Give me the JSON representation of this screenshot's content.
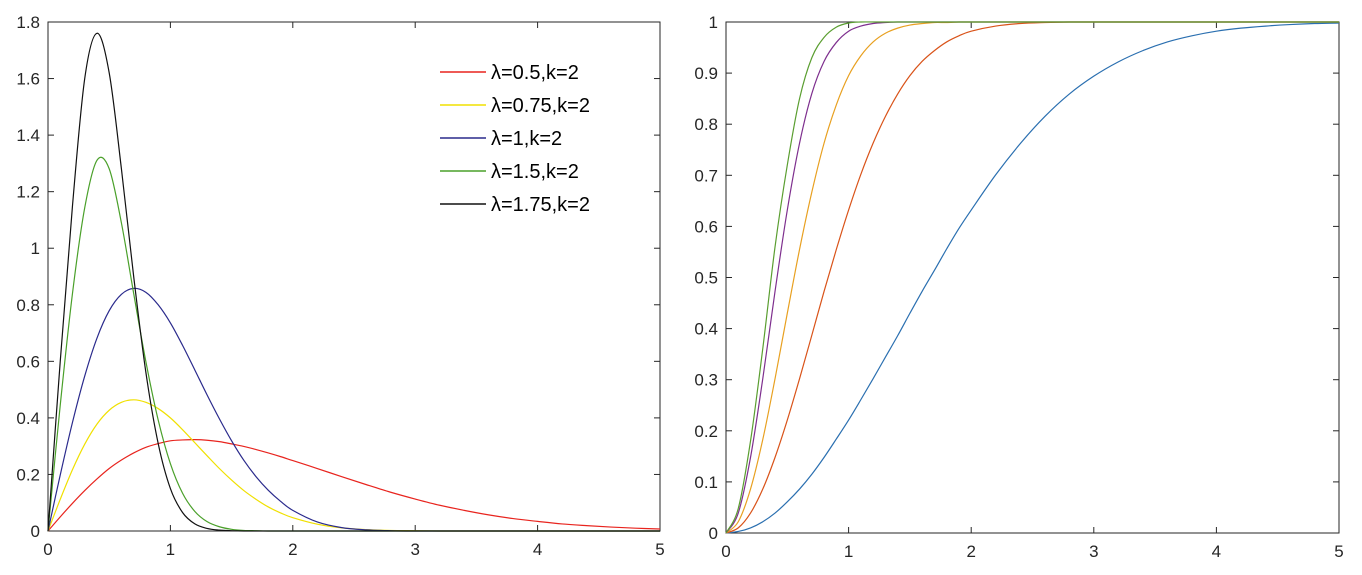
{
  "chart_data": [
    {
      "type": "line",
      "title": "",
      "xlabel": "",
      "ylabel": "",
      "xlim": [
        0,
        5
      ],
      "ylim": [
        0,
        1.8
      ],
      "xticks": [
        "0",
        "1",
        "2",
        "3",
        "4",
        "5"
      ],
      "yticks": [
        "0",
        "0.2",
        "0.4",
        "0.6",
        "0.8",
        "1",
        "1.2",
        "1.4",
        "1.6",
        "1.8"
      ],
      "grid": false,
      "legend": "top-right",
      "x": [
        0,
        0.1,
        0.2,
        0.3,
        0.4,
        0.5,
        0.6,
        0.7,
        0.8,
        0.9,
        1.0,
        1.1,
        1.2,
        1.3,
        1.4,
        1.5,
        1.6,
        1.7,
        1.8,
        1.9,
        2.0,
        2.2,
        2.4,
        2.6,
        2.8,
        3.0,
        3.2,
        3.4,
        3.6,
        3.8,
        4.0,
        4.2,
        4.4,
        4.6,
        4.8,
        5.0
      ],
      "series": [
        {
          "name": "λ=0.5,k=2",
          "color": "#e8241e",
          "values": [
            0,
            0.05,
            0.098,
            0.143,
            0.184,
            0.221,
            0.251,
            0.276,
            0.296,
            0.309,
            0.319,
            0.322,
            0.323,
            0.321,
            0.316,
            0.308,
            0.299,
            0.288,
            0.276,
            0.263,
            0.249,
            0.221,
            0.192,
            0.164,
            0.137,
            0.113,
            0.091,
            0.073,
            0.057,
            0.044,
            0.034,
            0.025,
            0.019,
            0.014,
            0.01,
            0.007
          ]
        },
        {
          "name": "λ=0.75,k=2",
          "color": "#f0e000",
          "values": [
            0,
            0.112,
            0.217,
            0.307,
            0.378,
            0.427,
            0.455,
            0.464,
            0.455,
            0.433,
            0.4,
            0.358,
            0.312,
            0.266,
            0.221,
            0.18,
            0.143,
            0.112,
            0.085,
            0.064,
            0.047,
            0.024,
            0.011,
            0.005,
            0.002,
            0.001,
            0,
            0,
            0,
            0,
            0,
            0,
            0,
            0,
            0,
            0
          ]
        },
        {
          "name": "λ=1,k=2",
          "color": "#2a2a8c",
          "values": [
            0,
            0.198,
            0.384,
            0.548,
            0.682,
            0.779,
            0.837,
            0.858,
            0.844,
            0.8,
            0.736,
            0.656,
            0.569,
            0.481,
            0.397,
            0.319,
            0.25,
            0.192,
            0.144,
            0.105,
            0.073,
            0.032,
            0.012,
            0.004,
            0.001,
            0,
            0,
            0,
            0,
            0,
            0,
            0,
            0,
            0,
            0,
            0
          ]
        },
        {
          "name": "λ=1.5,k=2",
          "color": "#4aa02a",
          "values": [
            0,
            0.445,
            0.84,
            1.143,
            1.311,
            1.281,
            1.089,
            0.84,
            0.598,
            0.393,
            0.238,
            0.133,
            0.069,
            0.033,
            0.015,
            0.006,
            0.002,
            0.001,
            0,
            0,
            0,
            0,
            0,
            0,
            0,
            0,
            0,
            0,
            0,
            0,
            0,
            0,
            0,
            0,
            0,
            0
          ]
        },
        {
          "name": "λ=1.75,k=2",
          "color": "#111111",
          "values": [
            0,
            0.6,
            1.15,
            1.6,
            1.76,
            1.62,
            1.28,
            0.9,
            0.56,
            0.31,
            0.15,
            0.065,
            0.025,
            0.009,
            0.003,
            0.001,
            0,
            0,
            0,
            0,
            0,
            0,
            0,
            0,
            0,
            0,
            0,
            0,
            0,
            0,
            0,
            0,
            0,
            0,
            0,
            0
          ]
        }
      ]
    },
    {
      "type": "line",
      "title": "",
      "xlabel": "",
      "ylabel": "",
      "xlim": [
        0,
        5
      ],
      "ylim": [
        0,
        1
      ],
      "xticks": [
        "0",
        "1",
        "2",
        "3",
        "4",
        "5"
      ],
      "yticks": [
        "0",
        "0.1",
        "0.2",
        "0.3",
        "0.4",
        "0.5",
        "0.6",
        "0.7",
        "0.8",
        "0.9",
        "1"
      ],
      "grid": false,
      "legend": "none",
      "x": [
        0,
        0.1,
        0.2,
        0.3,
        0.4,
        0.5,
        0.6,
        0.7,
        0.8,
        0.9,
        1.0,
        1.1,
        1.2,
        1.3,
        1.4,
        1.5,
        1.6,
        1.7,
        1.8,
        1.9,
        2.0,
        2.2,
        2.4,
        2.6,
        2.8,
        3.0,
        3.2,
        3.4,
        3.6,
        3.8,
        4.0,
        4.2,
        4.4,
        4.6,
        4.8,
        5.0
      ],
      "series": [
        {
          "color": "#2a6fb0",
          "values": [
            0,
            0.003,
            0.01,
            0.022,
            0.039,
            0.061,
            0.086,
            0.115,
            0.148,
            0.184,
            0.221,
            0.261,
            0.302,
            0.344,
            0.386,
            0.43,
            0.473,
            0.514,
            0.556,
            0.596,
            0.632,
            0.701,
            0.762,
            0.815,
            0.859,
            0.894,
            0.922,
            0.944,
            0.961,
            0.973,
            0.982,
            0.988,
            0.992,
            0.995,
            0.997,
            0.998
          ]
        },
        {
          "color": "#d95319",
          "values": [
            0,
            0.01,
            0.039,
            0.086,
            0.148,
            0.221,
            0.302,
            0.387,
            0.473,
            0.555,
            0.632,
            0.702,
            0.763,
            0.815,
            0.859,
            0.895,
            0.923,
            0.944,
            0.961,
            0.973,
            0.982,
            0.992,
            0.997,
            0.999,
            1,
            1,
            1,
            1,
            1,
            1,
            1,
            1,
            1,
            1,
            1,
            1
          ]
        },
        {
          "color": "#e8a020",
          "values": [
            0,
            0.022,
            0.086,
            0.183,
            0.302,
            0.43,
            0.555,
            0.667,
            0.763,
            0.838,
            0.895,
            0.934,
            0.961,
            0.978,
            0.988,
            0.994,
            0.997,
            0.999,
            0.999,
            1,
            1,
            1,
            1,
            1,
            1,
            1,
            1,
            1,
            1,
            1,
            1,
            1,
            1,
            1,
            1,
            1
          ]
        },
        {
          "color": "#7e2f8e",
          "values": [
            0,
            0.039,
            0.148,
            0.302,
            0.473,
            0.632,
            0.763,
            0.86,
            0.923,
            0.96,
            0.982,
            0.992,
            0.997,
            0.999,
            1,
            1,
            1,
            1,
            1,
            1,
            1,
            1,
            1,
            1,
            1,
            1,
            1,
            1,
            1,
            1,
            1,
            1,
            1,
            1,
            1,
            1
          ]
        },
        {
          "color": "#5a9e30",
          "values": [
            0,
            0.048,
            0.18,
            0.361,
            0.56,
            0.72,
            0.85,
            0.93,
            0.97,
            0.99,
            0.998,
            1,
            1,
            1,
            1,
            1,
            1,
            1,
            1,
            1,
            1,
            1,
            1,
            1,
            1,
            1,
            1,
            1,
            1,
            1,
            1,
            1,
            1,
            1,
            1,
            1
          ]
        }
      ]
    }
  ]
}
